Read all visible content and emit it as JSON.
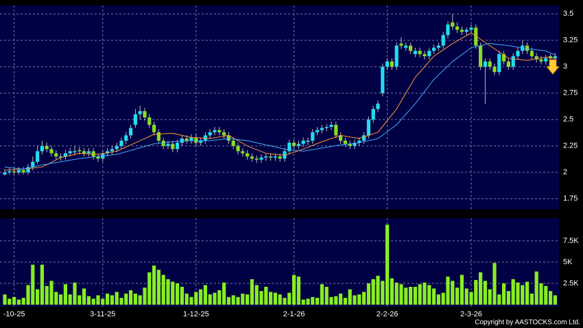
{
  "chart_data": {
    "type": "candlestick",
    "categories": [
      null,
      null,
      "-10-25",
      null,
      null,
      null,
      null,
      null,
      null,
      null,
      null,
      null,
      null,
      null,
      null,
      null,
      null,
      null,
      null,
      null,
      null,
      "3-11-25",
      null,
      null,
      null,
      null,
      null,
      null,
      null,
      null,
      null,
      null,
      null,
      null,
      null,
      null,
      null,
      null,
      null,
      null,
      null,
      "1-12-25",
      null,
      null,
      null,
      null,
      null,
      null,
      null,
      null,
      null,
      null,
      null,
      null,
      null,
      null,
      null,
      null,
      null,
      null,
      null,
      null,
      "2-1-26",
      null,
      null,
      null,
      null,
      null,
      null,
      null,
      null,
      null,
      null,
      null,
      null,
      null,
      null,
      null,
      null,
      null,
      null,
      null,
      "2-2-26",
      null,
      null,
      null,
      null,
      null,
      null,
      null,
      null,
      null,
      null,
      null,
      null,
      null,
      null,
      null,
      null,
      null,
      "2-3-26",
      null,
      null,
      null,
      null,
      null,
      null,
      null,
      null,
      null,
      null,
      null,
      null,
      null,
      null,
      null,
      null,
      null,
      null
    ],
    "open": [
      1.98,
      2.0,
      2.01,
      2.0,
      2.02,
      2.0,
      2.05,
      2.1,
      2.2,
      2.25,
      2.22,
      2.18,
      2.14,
      2.15,
      2.18,
      2.19,
      2.21,
      2.2,
      2.18,
      2.2,
      2.15,
      2.13,
      2.18,
      2.2,
      2.22,
      2.25,
      2.3,
      2.35,
      2.45,
      2.55,
      2.58,
      2.52,
      2.45,
      2.38,
      2.3,
      2.25,
      2.27,
      2.22,
      2.28,
      2.32,
      2.3,
      2.33,
      2.28,
      2.3,
      2.35,
      2.38,
      2.4,
      2.38,
      2.35,
      2.3,
      2.25,
      2.2,
      2.18,
      2.15,
      2.13,
      2.12,
      2.14,
      2.15,
      2.14,
      2.15,
      2.13,
      2.2,
      2.28,
      2.25,
      2.27,
      2.29,
      2.3,
      2.38,
      2.4,
      2.42,
      2.43,
      2.45,
      2.35,
      2.3,
      2.27,
      2.25,
      2.28,
      2.3,
      2.35,
      2.5,
      2.6,
      2.75,
      3.0,
      3.05,
      3.0,
      3.22,
      3.18,
      3.2,
      3.12,
      3.15,
      3.12,
      3.1,
      3.15,
      3.18,
      3.2,
      3.3,
      3.42,
      3.38,
      3.35,
      3.33,
      3.35,
      3.37,
      3.2,
      3.0,
      3.05,
      3.0,
      2.95,
      3.12,
      3.05,
      3.0,
      3.1,
      3.15,
      3.2,
      3.15,
      3.1,
      3.07,
      3.05,
      3.1,
      3.08
    ],
    "high": [
      2.03,
      2.04,
      2.04,
      2.05,
      2.05,
      2.08,
      2.15,
      2.25,
      2.3,
      2.28,
      2.25,
      2.21,
      2.18,
      2.21,
      2.23,
      2.25,
      2.24,
      2.23,
      2.23,
      2.23,
      2.18,
      2.21,
      2.23,
      2.25,
      2.28,
      2.33,
      2.38,
      2.45,
      2.6,
      2.63,
      2.61,
      2.55,
      2.48,
      2.41,
      2.33,
      2.3,
      2.3,
      2.31,
      2.35,
      2.35,
      2.36,
      2.36,
      2.33,
      2.38,
      2.41,
      2.43,
      2.43,
      2.41,
      2.38,
      2.33,
      2.28,
      2.23,
      2.21,
      2.18,
      2.16,
      2.17,
      2.18,
      2.18,
      2.18,
      2.18,
      2.23,
      2.31,
      2.31,
      2.3,
      2.33,
      2.33,
      2.41,
      2.43,
      2.45,
      2.46,
      2.48,
      2.48,
      2.38,
      2.33,
      2.3,
      2.31,
      2.33,
      2.38,
      2.53,
      2.63,
      2.68,
      3.03,
      3.08,
      3.08,
      3.23,
      3.28,
      3.23,
      3.23,
      3.18,
      3.18,
      3.15,
      3.18,
      3.21,
      3.23,
      3.33,
      3.43,
      3.5,
      3.42,
      3.38,
      3.37,
      3.4,
      3.4,
      3.23,
      3.08,
      3.08,
      3.03,
      3.15,
      3.15,
      3.08,
      3.13,
      3.18,
      3.25,
      3.23,
      3.18,
      3.13,
      3.1,
      3.11,
      3.12,
      3.13
    ],
    "low": [
      1.97,
      1.98,
      1.98,
      1.98,
      1.98,
      1.98,
      2.02,
      2.08,
      2.17,
      2.19,
      2.15,
      2.12,
      2.11,
      2.12,
      2.15,
      2.16,
      2.17,
      2.15,
      2.15,
      2.12,
      2.1,
      2.1,
      2.15,
      2.17,
      2.19,
      2.22,
      2.27,
      2.32,
      2.42,
      2.5,
      2.49,
      2.42,
      2.35,
      2.27,
      2.22,
      2.22,
      2.19,
      2.19,
      2.25,
      2.27,
      2.27,
      2.25,
      2.25,
      2.27,
      2.32,
      2.35,
      2.35,
      2.32,
      2.27,
      2.22,
      2.17,
      2.15,
      2.12,
      2.1,
      2.09,
      2.09,
      2.11,
      2.11,
      2.11,
      2.1,
      2.1,
      2.17,
      2.22,
      2.22,
      2.24,
      2.26,
      2.27,
      2.35,
      2.37,
      2.39,
      2.4,
      2.32,
      2.27,
      2.24,
      2.22,
      2.22,
      2.25,
      2.27,
      2.32,
      2.47,
      2.57,
      2.72,
      2.97,
      2.97,
      2.97,
      3.17,
      3.15,
      3.12,
      3.09,
      3.09,
      3.07,
      3.07,
      3.12,
      3.15,
      3.17,
      3.27,
      3.35,
      3.32,
      3.3,
      3.3,
      3.32,
      3.17,
      2.97,
      2.65,
      2.97,
      2.92,
      2.92,
      3.02,
      2.97,
      2.97,
      3.07,
      3.12,
      3.12,
      3.07,
      3.04,
      3.02,
      3.02,
      3.05,
      3.05
    ],
    "close": [
      2.0,
      2.01,
      2.0,
      2.02,
      2.0,
      2.05,
      2.1,
      2.2,
      2.25,
      2.22,
      2.18,
      2.15,
      2.15,
      2.18,
      2.2,
      2.2,
      2.2,
      2.18,
      2.2,
      2.15,
      2.13,
      2.18,
      2.2,
      2.22,
      2.25,
      2.3,
      2.35,
      2.42,
      2.55,
      2.58,
      2.52,
      2.45,
      2.38,
      2.3,
      2.25,
      2.27,
      2.22,
      2.28,
      2.32,
      2.3,
      2.33,
      2.28,
      2.3,
      2.35,
      2.38,
      2.4,
      2.38,
      2.35,
      2.3,
      2.25,
      2.2,
      2.18,
      2.15,
      2.13,
      2.12,
      2.14,
      2.15,
      2.14,
      2.15,
      2.13,
      2.2,
      2.28,
      2.25,
      2.27,
      2.3,
      2.3,
      2.38,
      2.4,
      2.42,
      2.43,
      2.45,
      2.35,
      2.3,
      2.27,
      2.25,
      2.28,
      2.3,
      2.35,
      2.5,
      2.6,
      2.65,
      3.0,
      3.05,
      3.0,
      3.2,
      3.2,
      3.2,
      3.15,
      3.15,
      3.12,
      3.1,
      3.15,
      3.18,
      3.2,
      3.3,
      3.4,
      3.38,
      3.35,
      3.33,
      3.35,
      3.37,
      3.2,
      3.0,
      3.05,
      3.0,
      2.95,
      3.12,
      3.05,
      3.0,
      3.1,
      3.15,
      3.2,
      3.15,
      3.1,
      3.07,
      3.05,
      3.08,
      3.08,
      3.1
    ],
    "volume": [
      1200,
      700,
      900,
      600,
      800,
      2300,
      4700,
      1800,
      4700,
      2200,
      2800,
      1500,
      1200,
      2400,
      1200,
      2600,
      1100,
      1900,
      1000,
      700,
      1100,
      700,
      1300,
      1100,
      1500,
      800,
      1300,
      1700,
      1300,
      1100,
      2000,
      3800,
      4600,
      4100,
      3500,
      3000,
      2700,
      2500,
      2100,
      1300,
      900,
      1500,
      1800,
      2300,
      1200,
      1400,
      1700,
      2600,
      900,
      1100,
      900,
      1300,
      1200,
      3000,
      2300,
      1600,
      2100,
      1500,
      1400,
      1200,
      800,
      1400,
      3500,
      3300,
      600,
      700,
      900,
      800,
      2400,
      2100,
      900,
      1000,
      1300,
      800,
      1800,
      1100,
      1200,
      1500,
      2500,
      3000,
      3400,
      2800,
      9400,
      3100,
      2600,
      2400,
      2000,
      2100,
      2100,
      2400,
      2600,
      2300,
      1900,
      1200,
      1400,
      3300,
      2800,
      2000,
      3500,
      1900,
      1500,
      2900,
      3800,
      2800,
      1800,
      4900,
      1200,
      2500,
      1600,
      3000,
      2600,
      2300,
      2700,
      1300,
      3900,
      2500,
      2200,
      1600,
      1100
    ],
    "up_color": "#22ddee",
    "down_color": "#88dd22",
    "volume_color": "#88ee22",
    "series": [
      {
        "color": "#ff9933",
        "x": [
          0,
          4,
          8,
          12,
          16,
          20,
          24,
          28,
          32,
          36,
          40,
          44,
          48,
          52,
          56,
          60,
          64,
          68,
          72,
          76,
          80,
          84,
          88,
          92,
          96,
          100,
          104,
          108,
          112,
          116,
          118
        ],
        "values": [
          2.02,
          2.03,
          2.05,
          2.14,
          2.18,
          2.17,
          2.2,
          2.28,
          2.36,
          2.37,
          2.33,
          2.32,
          2.35,
          2.25,
          2.18,
          2.16,
          2.22,
          2.29,
          2.35,
          2.32,
          2.38,
          2.6,
          2.9,
          3.1,
          3.22,
          3.32,
          3.2,
          3.08,
          3.06,
          3.09,
          3.08
        ]
      },
      {
        "color": "#44aaff",
        "x": [
          0,
          4,
          8,
          12,
          16,
          20,
          24,
          28,
          32,
          36,
          40,
          44,
          48,
          52,
          56,
          60,
          64,
          68,
          72,
          76,
          80,
          84,
          88,
          92,
          96,
          100,
          104,
          108,
          112,
          116,
          118
        ],
        "values": [
          2.05,
          2.03,
          2.07,
          2.1,
          2.13,
          2.15,
          2.17,
          2.22,
          2.27,
          2.29,
          2.3,
          2.3,
          2.32,
          2.3,
          2.26,
          2.22,
          2.2,
          2.23,
          2.26,
          2.28,
          2.32,
          2.45,
          2.65,
          2.88,
          3.05,
          3.18,
          3.22,
          3.2,
          3.17,
          3.15,
          3.11
        ]
      }
    ],
    "ylim": [
      1.65,
      3.58
    ],
    "yticks": [
      1.75,
      2,
      2.25,
      2.5,
      2.75,
      3,
      3.25,
      3.5
    ],
    "y2lim": [
      0,
      10000
    ],
    "y2ticks": [
      {
        "value": 2500,
        "label": "2.5K"
      },
      {
        "value": 5000,
        "label": "5K"
      },
      {
        "value": 7500,
        "label": "7.5K"
      }
    ],
    "grid": true,
    "footer": "Copyright by AASTOCKS.com Ltd."
  }
}
